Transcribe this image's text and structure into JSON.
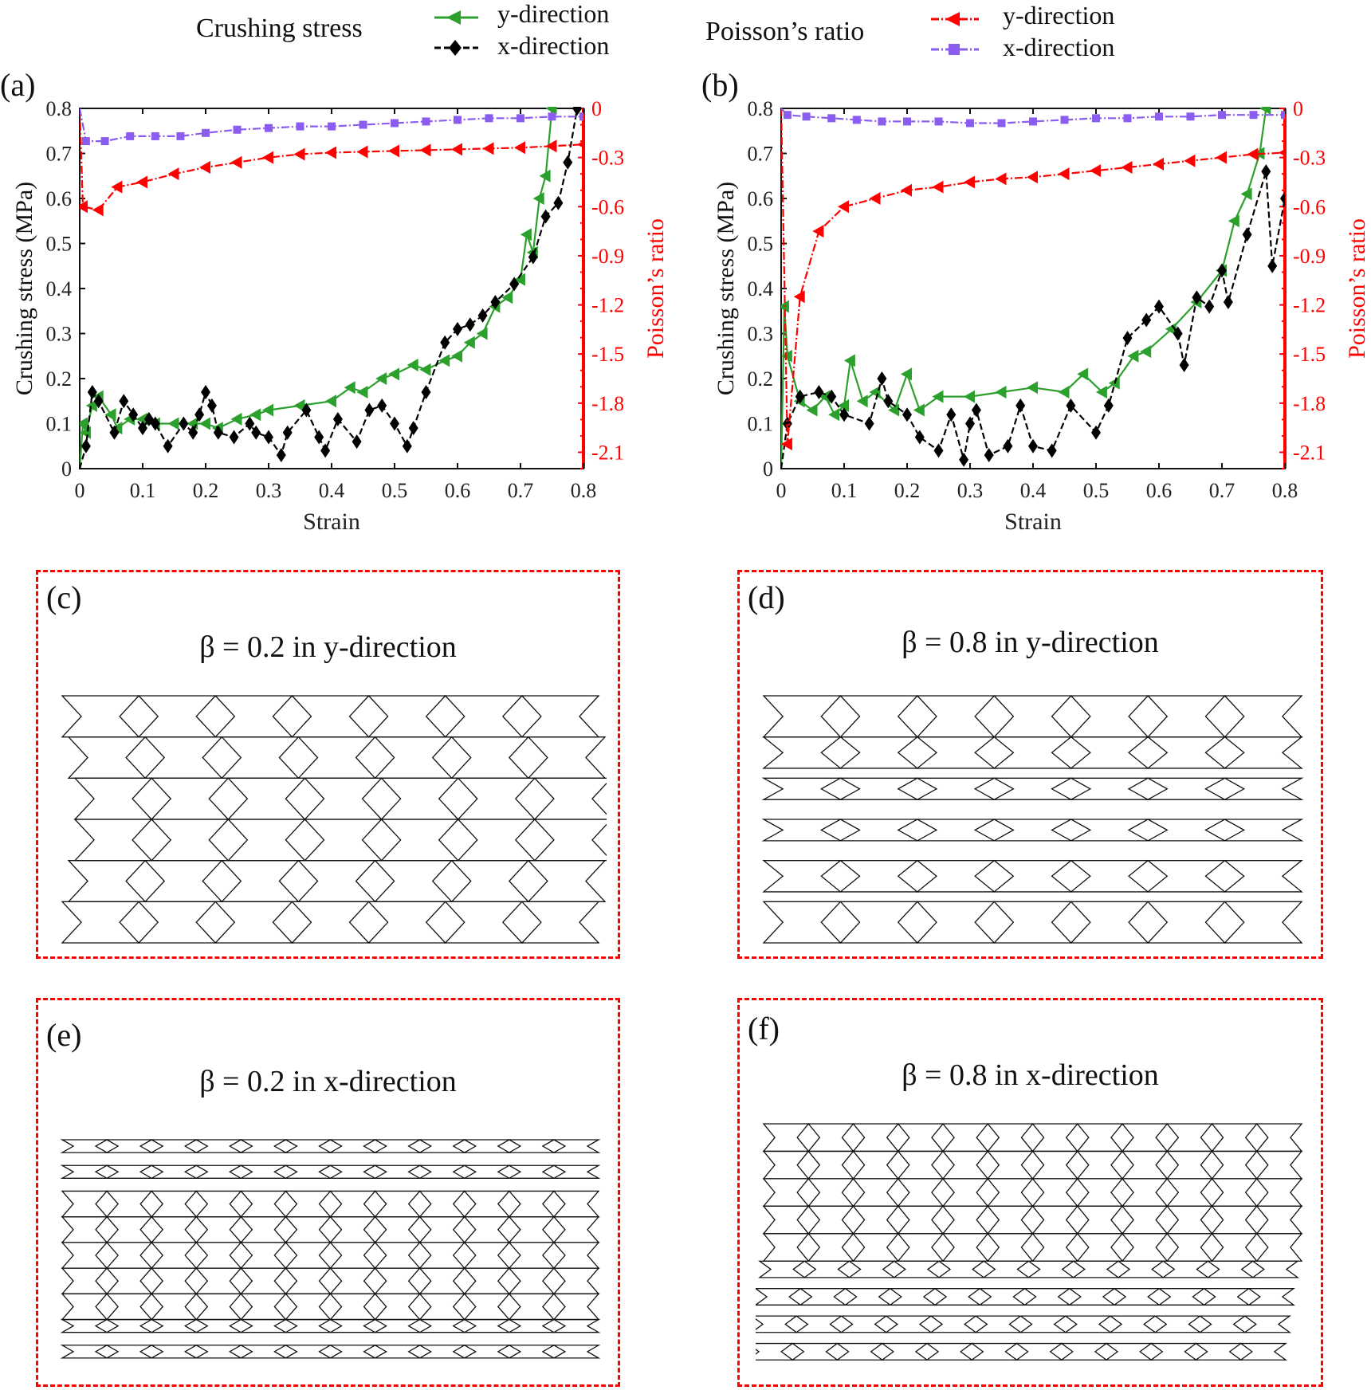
{
  "legend": {
    "crushing_title": "Crushing stress",
    "crushing_y": "y-direction",
    "crushing_x": "x-direction",
    "poisson_title": "Poisson’s ratio",
    "poisson_y": "y-direction",
    "poisson_x": "x-direction"
  },
  "colors": {
    "green": "#2ca02c",
    "black": "#000000",
    "red": "#ff0000",
    "purple": "#8a5cf0"
  },
  "chart_data": [
    {
      "type": "line",
      "panel_label": "(a)",
      "xlabel": "Strain",
      "ylabel": "Crushing stress (MPa)",
      "y2label": "Poisson’s ratio",
      "xlim": [
        0,
        0.8
      ],
      "ylim": [
        0,
        0.8
      ],
      "y2lim": [
        -2.2,
        0
      ],
      "xticks": [
        "0",
        "0.1",
        "0.2",
        "0.3",
        "0.4",
        "0.5",
        "0.6",
        "0.7",
        "0.8"
      ],
      "yticks": [
        "0",
        "0.1",
        "0.2",
        "0.3",
        "0.4",
        "0.5",
        "0.6",
        "0.7",
        "0.8"
      ],
      "y2ticks": [
        "0",
        "-0.3",
        "-0.6",
        "-0.9",
        "-1.2",
        "-1.5",
        "-1.8",
        "-2.1"
      ],
      "series": [
        {
          "name": "Crushing stress y-direction",
          "axis": "left",
          "color": "green",
          "marker": "triangle-left",
          "dash": "",
          "points": [
            [
              0,
              0
            ],
            [
              0.005,
              0.1
            ],
            [
              0.01,
              0.08
            ],
            [
              0.02,
              0.14
            ],
            [
              0.03,
              0.16
            ],
            [
              0.05,
              0.12
            ],
            [
              0.06,
              0.09
            ],
            [
              0.08,
              0.11
            ],
            [
              0.1,
              0.11
            ],
            [
              0.12,
              0.1
            ],
            [
              0.15,
              0.1
            ],
            [
              0.18,
              0.1
            ],
            [
              0.2,
              0.1
            ],
            [
              0.22,
              0.09
            ],
            [
              0.25,
              0.11
            ],
            [
              0.28,
              0.12
            ],
            [
              0.3,
              0.13
            ],
            [
              0.35,
              0.14
            ],
            [
              0.4,
              0.15
            ],
            [
              0.43,
              0.18
            ],
            [
              0.45,
              0.17
            ],
            [
              0.48,
              0.2
            ],
            [
              0.5,
              0.21
            ],
            [
              0.53,
              0.23
            ],
            [
              0.55,
              0.22
            ],
            [
              0.58,
              0.24
            ],
            [
              0.6,
              0.25
            ],
            [
              0.62,
              0.28
            ],
            [
              0.64,
              0.3
            ],
            [
              0.66,
              0.36
            ],
            [
              0.68,
              0.38
            ],
            [
              0.7,
              0.42
            ],
            [
              0.71,
              0.52
            ],
            [
              0.72,
              0.48
            ],
            [
              0.73,
              0.6
            ],
            [
              0.74,
              0.65
            ],
            [
              0.75,
              0.8
            ]
          ]
        },
        {
          "name": "Crushing stress x-direction",
          "axis": "left",
          "color": "black",
          "marker": "diamond",
          "dash": "8,4",
          "points": [
            [
              0,
              0
            ],
            [
              0.01,
              0.05
            ],
            [
              0.02,
              0.17
            ],
            [
              0.03,
              0.15
            ],
            [
              0.055,
              0.08
            ],
            [
              0.07,
              0.15
            ],
            [
              0.085,
              0.12
            ],
            [
              0.1,
              0.09
            ],
            [
              0.11,
              0.11
            ],
            [
              0.12,
              0.1
            ],
            [
              0.14,
              0.05
            ],
            [
              0.165,
              0.1
            ],
            [
              0.18,
              0.08
            ],
            [
              0.19,
              0.12
            ],
            [
              0.2,
              0.17
            ],
            [
              0.21,
              0.14
            ],
            [
              0.22,
              0.08
            ],
            [
              0.245,
              0.07
            ],
            [
              0.27,
              0.1
            ],
            [
              0.28,
              0.08
            ],
            [
              0.3,
              0.07
            ],
            [
              0.32,
              0.03
            ],
            [
              0.33,
              0.08
            ],
            [
              0.36,
              0.13
            ],
            [
              0.38,
              0.07
            ],
            [
              0.39,
              0.04
            ],
            [
              0.41,
              0.11
            ],
            [
              0.44,
              0.06
            ],
            [
              0.46,
              0.13
            ],
            [
              0.48,
              0.14
            ],
            [
              0.5,
              0.1
            ],
            [
              0.52,
              0.05
            ],
            [
              0.53,
              0.09
            ],
            [
              0.55,
              0.17
            ],
            [
              0.58,
              0.28
            ],
            [
              0.6,
              0.31
            ],
            [
              0.62,
              0.32
            ],
            [
              0.64,
              0.34
            ],
            [
              0.66,
              0.37
            ],
            [
              0.69,
              0.41
            ],
            [
              0.72,
              0.47
            ],
            [
              0.74,
              0.56
            ],
            [
              0.76,
              0.59
            ],
            [
              0.775,
              0.68
            ],
            [
              0.79,
              0.8
            ]
          ]
        },
        {
          "name": "Poisson's ratio y-direction",
          "axis": "right",
          "color": "red",
          "marker": "triangle-left",
          "dash": "10,3,2,3",
          "points": [
            [
              0,
              0
            ],
            [
              0.005,
              -0.6
            ],
            [
              0.03,
              -0.62
            ],
            [
              0.06,
              -0.48
            ],
            [
              0.1,
              -0.45
            ],
            [
              0.15,
              -0.4
            ],
            [
              0.2,
              -0.36
            ],
            [
              0.25,
              -0.33
            ],
            [
              0.3,
              -0.3
            ],
            [
              0.35,
              -0.28
            ],
            [
              0.4,
              -0.27
            ],
            [
              0.45,
              -0.265
            ],
            [
              0.5,
              -0.26
            ],
            [
              0.55,
              -0.255
            ],
            [
              0.6,
              -0.25
            ],
            [
              0.65,
              -0.245
            ],
            [
              0.7,
              -0.24
            ],
            [
              0.75,
              -0.23
            ],
            [
              0.8,
              -0.22
            ]
          ]
        },
        {
          "name": "Poisson's ratio x-direction",
          "axis": "right",
          "color": "purple",
          "marker": "square",
          "dash": "10,3,2,3",
          "points": [
            [
              0,
              0
            ],
            [
              0.01,
              -0.2
            ],
            [
              0.04,
              -0.2
            ],
            [
              0.08,
              -0.17
            ],
            [
              0.12,
              -0.17
            ],
            [
              0.16,
              -0.17
            ],
            [
              0.2,
              -0.15
            ],
            [
              0.25,
              -0.13
            ],
            [
              0.3,
              -0.12
            ],
            [
              0.35,
              -0.11
            ],
            [
              0.4,
              -0.11
            ],
            [
              0.45,
              -0.1
            ],
            [
              0.5,
              -0.09
            ],
            [
              0.55,
              -0.08
            ],
            [
              0.6,
              -0.07
            ],
            [
              0.65,
              -0.06
            ],
            [
              0.7,
              -0.06
            ],
            [
              0.75,
              -0.05
            ],
            [
              0.8,
              -0.05
            ]
          ]
        }
      ]
    },
    {
      "type": "line",
      "panel_label": "(b)",
      "xlabel": "Strain",
      "ylabel": "Crushing stress (MPa)",
      "y2label": "Poisson’s ratio",
      "xlim": [
        0,
        0.8
      ],
      "ylim": [
        0,
        0.8
      ],
      "y2lim": [
        -2.2,
        0
      ],
      "xticks": [
        "0",
        "0.1",
        "0.2",
        "0.3",
        "0.4",
        "0.5",
        "0.6",
        "0.7",
        "0.8"
      ],
      "yticks": [
        "0",
        "0.1",
        "0.2",
        "0.3",
        "0.4",
        "0.5",
        "0.6",
        "0.7",
        "0.8"
      ],
      "y2ticks": [
        "0",
        "-0.3",
        "-0.6",
        "-0.9",
        "-1.2",
        "-1.5",
        "-1.8",
        "-2.1"
      ],
      "series": [
        {
          "name": "Crushing stress y-direction",
          "axis": "left",
          "color": "green",
          "marker": "triangle-left",
          "dash": "",
          "points": [
            [
              0,
              0
            ],
            [
              0.005,
              0.36
            ],
            [
              0.01,
              0.25
            ],
            [
              0.03,
              0.15
            ],
            [
              0.05,
              0.13
            ],
            [
              0.07,
              0.16
            ],
            [
              0.085,
              0.12
            ],
            [
              0.1,
              0.14
            ],
            [
              0.11,
              0.24
            ],
            [
              0.13,
              0.15
            ],
            [
              0.15,
              0.17
            ],
            [
              0.18,
              0.13
            ],
            [
              0.2,
              0.21
            ],
            [
              0.22,
              0.13
            ],
            [
              0.25,
              0.16
            ],
            [
              0.3,
              0.16
            ],
            [
              0.35,
              0.17
            ],
            [
              0.4,
              0.18
            ],
            [
              0.45,
              0.17
            ],
            [
              0.48,
              0.21
            ],
            [
              0.51,
              0.17
            ],
            [
              0.53,
              0.19
            ],
            [
              0.56,
              0.25
            ],
            [
              0.58,
              0.26
            ],
            [
              0.62,
              0.31
            ],
            [
              0.66,
              0.37
            ],
            [
              0.7,
              0.44
            ],
            [
              0.72,
              0.55
            ],
            [
              0.74,
              0.61
            ],
            [
              0.76,
              0.7
            ],
            [
              0.77,
              0.8
            ]
          ]
        },
        {
          "name": "Crushing stress x-direction",
          "axis": "left",
          "color": "black",
          "marker": "diamond",
          "dash": "8,4",
          "points": [
            [
              0,
              0
            ],
            [
              0.01,
              0.1
            ],
            [
              0.03,
              0.16
            ],
            [
              0.06,
              0.17
            ],
            [
              0.08,
              0.16
            ],
            [
              0.1,
              0.12
            ],
            [
              0.14,
              0.1
            ],
            [
              0.16,
              0.2
            ],
            [
              0.17,
              0.15
            ],
            [
              0.2,
              0.12
            ],
            [
              0.22,
              0.07
            ],
            [
              0.25,
              0.04
            ],
            [
              0.27,
              0.12
            ],
            [
              0.29,
              0.02
            ],
            [
              0.3,
              0.1
            ],
            [
              0.31,
              0.13
            ],
            [
              0.33,
              0.03
            ],
            [
              0.36,
              0.05
            ],
            [
              0.38,
              0.14
            ],
            [
              0.4,
              0.05
            ],
            [
              0.43,
              0.04
            ],
            [
              0.46,
              0.14
            ],
            [
              0.5,
              0.08
            ],
            [
              0.52,
              0.14
            ],
            [
              0.55,
              0.29
            ],
            [
              0.58,
              0.33
            ],
            [
              0.6,
              0.36
            ],
            [
              0.63,
              0.3
            ],
            [
              0.64,
              0.23
            ],
            [
              0.66,
              0.38
            ],
            [
              0.68,
              0.36
            ],
            [
              0.7,
              0.44
            ],
            [
              0.71,
              0.37
            ],
            [
              0.74,
              0.52
            ],
            [
              0.77,
              0.66
            ],
            [
              0.78,
              0.45
            ],
            [
              0.8,
              0.6
            ]
          ]
        },
        {
          "name": "Poisson's ratio y-direction",
          "axis": "right",
          "color": "red",
          "marker": "triangle-left",
          "dash": "10,3,2,3",
          "points": [
            [
              0,
              0
            ],
            [
              0.01,
              -2.05
            ],
            [
              0.03,
              -1.15
            ],
            [
              0.06,
              -0.75
            ],
            [
              0.1,
              -0.6
            ],
            [
              0.15,
              -0.55
            ],
            [
              0.2,
              -0.5
            ],
            [
              0.25,
              -0.48
            ],
            [
              0.3,
              -0.45
            ],
            [
              0.35,
              -0.43
            ],
            [
              0.4,
              -0.42
            ],
            [
              0.45,
              -0.4
            ],
            [
              0.5,
              -0.38
            ],
            [
              0.55,
              -0.36
            ],
            [
              0.6,
              -0.34
            ],
            [
              0.65,
              -0.32
            ],
            [
              0.7,
              -0.3
            ],
            [
              0.75,
              -0.28
            ],
            [
              0.8,
              -0.27
            ]
          ]
        },
        {
          "name": "Poisson's ratio x-direction",
          "axis": "right",
          "color": "purple",
          "marker": "square",
          "dash": "10,3,2,3",
          "points": [
            [
              0,
              0
            ],
            [
              0.01,
              -0.04
            ],
            [
              0.04,
              -0.05
            ],
            [
              0.08,
              -0.06
            ],
            [
              0.12,
              -0.07
            ],
            [
              0.16,
              -0.08
            ],
            [
              0.2,
              -0.08
            ],
            [
              0.25,
              -0.08
            ],
            [
              0.3,
              -0.09
            ],
            [
              0.35,
              -0.09
            ],
            [
              0.4,
              -0.08
            ],
            [
              0.45,
              -0.07
            ],
            [
              0.5,
              -0.06
            ],
            [
              0.55,
              -0.06
            ],
            [
              0.6,
              -0.05
            ],
            [
              0.65,
              -0.05
            ],
            [
              0.7,
              -0.04
            ],
            [
              0.75,
              -0.04
            ],
            [
              0.8,
              -0.04
            ]
          ]
        }
      ]
    }
  ],
  "panels": [
    {
      "label": "(c)",
      "title": "β = 0.2  in y-direction"
    },
    {
      "label": "(d)",
      "title": "β = 0.8  in y-direction"
    },
    {
      "label": "(e)",
      "title": "β = 0.2  in x-direction"
    },
    {
      "label": "(f)",
      "title": "β = 0.8  in x-direction"
    }
  ]
}
